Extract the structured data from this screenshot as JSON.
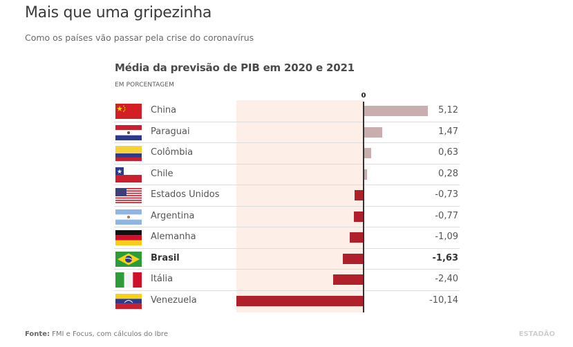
{
  "header": {
    "title": "Mais que uma gripezinha",
    "subtitle": "Como os países vão passar pela crise do coronavírus"
  },
  "chart_data": {
    "type": "bar",
    "orientation": "horizontal",
    "title": "Média da previsão de PIB em 2020 e 2021",
    "ylabel": "EM PORCENTAGEM",
    "zero_label": "0",
    "xlim": [
      -10.14,
      5.12
    ],
    "categories": [
      "China",
      "Paraguai",
      "Colômbia",
      "Chile",
      "Estados Unidos",
      "Argentina",
      "Alemanha",
      "Brasil",
      "Itália",
      "Venezuela"
    ],
    "values": [
      5.12,
      1.47,
      0.63,
      0.28,
      -0.73,
      -0.77,
      -1.09,
      -1.63,
      -2.4,
      -10.14
    ],
    "value_labels": [
      "5,12",
      "1,47",
      "0,63",
      "0,28",
      "-0,73",
      "-0,77",
      "-1,09",
      "-1,63",
      "-2,40",
      "-10,14"
    ],
    "flags": [
      "china-flag-icon",
      "paraguay-flag-icon",
      "colombia-flag-icon",
      "chile-flag-icon",
      "usa-flag-icon",
      "argentina-flag-icon",
      "germany-flag-icon",
      "brazil-flag-icon",
      "italy-flag-icon",
      "venezuela-flag-icon"
    ],
    "highlight": "Brasil",
    "colors": {
      "positive": "#c9aeb0",
      "negative": "#b0202a",
      "negative_shade": "#fdeee8"
    }
  },
  "footer": {
    "source_label": "Fonte:",
    "source_text": " FMI e Focus, com cálculos do Ibre",
    "logo": "ESTADÃO"
  }
}
